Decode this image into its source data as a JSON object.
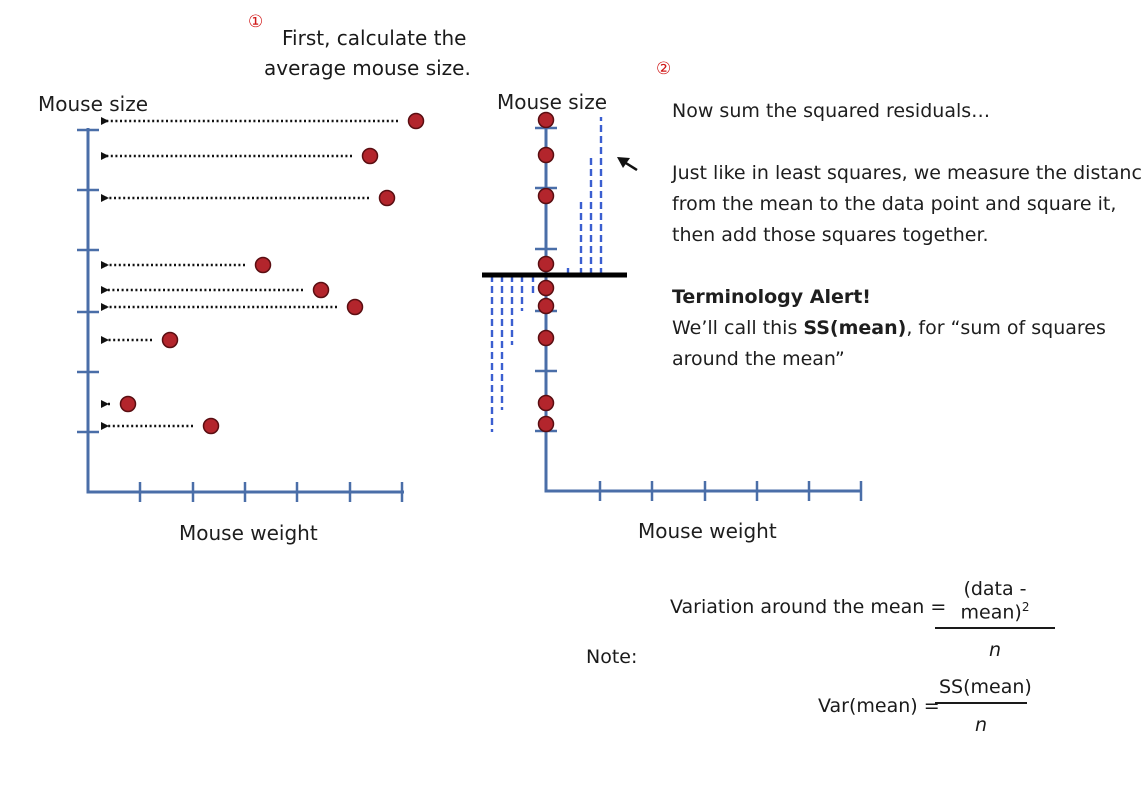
{
  "left_panel": {
    "step_marker": "①",
    "caption_line1": "First, calculate the",
    "caption_line2": "average mouse size.",
    "y_label": "Mouse size",
    "x_label": "Mouse weight"
  },
  "right_panel": {
    "step_marker": "②",
    "y_label": "Mouse size",
    "x_label": "Mouse weight",
    "heading": "Now sum the squared residuals…",
    "explanation": [
      "Just like in least squares, we measure the distance",
      "from the mean to the data point and square it,",
      "then add those squares together."
    ],
    "alert_title": "Terminology Alert!",
    "alert_line1_pre": "We’ll call this ",
    "alert_line1_bold": "SS(mean)",
    "alert_line1_post": ", for “sum of squares",
    "alert_line2": "around the mean”"
  },
  "formulas": {
    "variation_label": "Variation around the mean =",
    "variation_numerator": "(data - mean)",
    "variation_exponent": "2",
    "variation_denominator": "n",
    "note_label": "Note:",
    "var_label": "Var(mean) =",
    "var_numerator": "SS(mean)",
    "var_denominator": "n"
  },
  "colors": {
    "axis": "#4a6ea8",
    "point_fill": "#b3252c",
    "point_stroke": "#5a0e12",
    "residual": "#3b5fd0",
    "mean_line": "#000000",
    "step_marker": "#d01818"
  }
}
